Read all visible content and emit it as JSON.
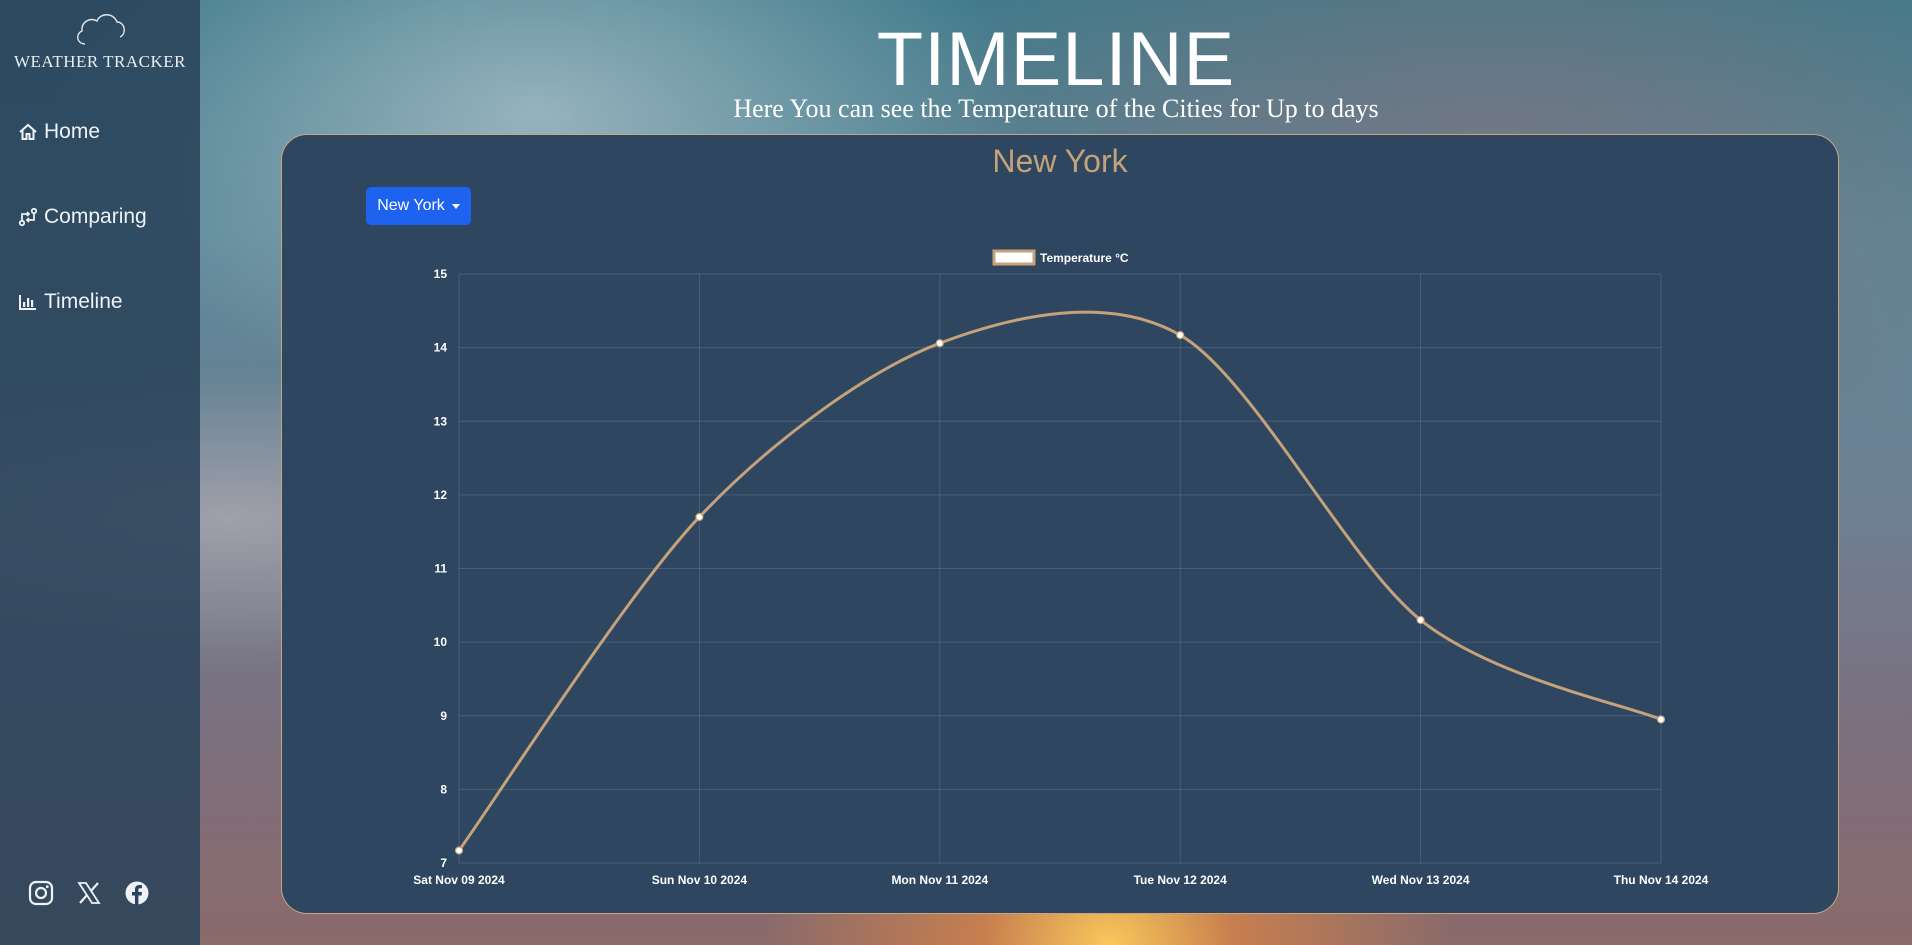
{
  "brand": {
    "name": "WEATHER TRACKER",
    "icon": "cloud-icon"
  },
  "nav": [
    {
      "label": "Home",
      "icon": "home-icon"
    },
    {
      "label": "Comparing",
      "icon": "compare-icon"
    },
    {
      "label": "Timeline",
      "icon": "chart-icon"
    }
  ],
  "social": [
    "instagram-icon",
    "x-icon",
    "facebook-icon"
  ],
  "header": {
    "title": "TIMELINE",
    "subtitle": "Here You can see the Temperature of the Cities for Up to days"
  },
  "panel": {
    "city_title": "New York",
    "dropdown_label": "New York"
  },
  "colors": {
    "accent": "#c4a27a",
    "panel": "#2e4660",
    "button": "#1e62f0",
    "sidebar": "#2a435a"
  },
  "chart_data": {
    "type": "line",
    "x": [
      "Sat Nov 09 2024",
      "Sun Nov 10 2024",
      "Mon Nov 11 2024",
      "Tue Nov 12 2024",
      "Wed Nov 13 2024",
      "Thu Nov 14 2024"
    ],
    "series": [
      {
        "name": "Temperature °C",
        "values": [
          7.17,
          11.7,
          14.06,
          14.17,
          10.3,
          8.95
        ],
        "color": "#c4a27a"
      }
    ],
    "ylim": [
      7,
      15
    ],
    "yticks": [
      7,
      8,
      9,
      10,
      11,
      12,
      13,
      14,
      15
    ],
    "grid": true,
    "legend": "top-center"
  }
}
